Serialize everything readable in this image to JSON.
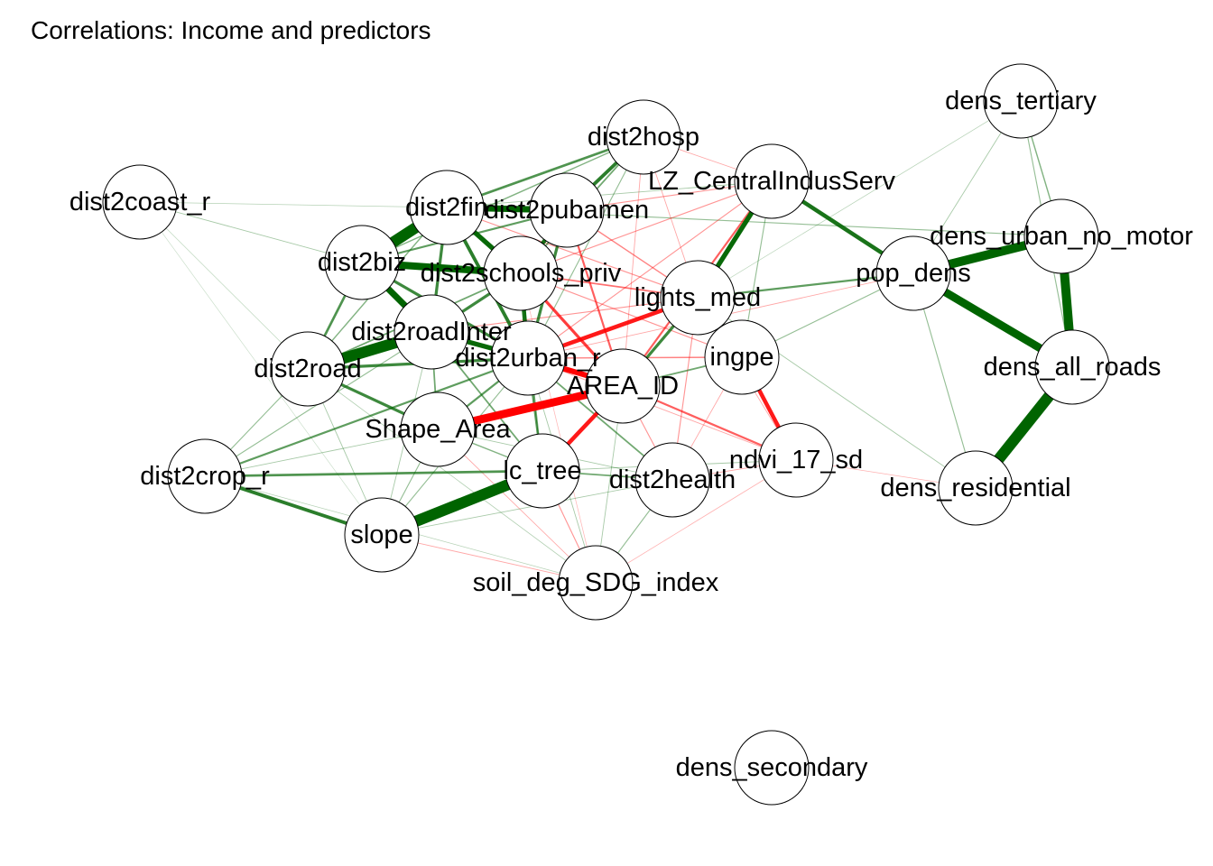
{
  "title": "Correlations: Income and predictors",
  "colors": {
    "positive": "#006400",
    "negative": "#ff0000",
    "node_fill": "#ffffff",
    "node_stroke": "#000000"
  },
  "nodes": [
    {
      "id": "dist2coast_r",
      "label": "dist2coast_r"
    },
    {
      "id": "dist2hosp",
      "label": "dist2hosp"
    },
    {
      "id": "LZ_CentralIndusServ",
      "label": "LZ_CentralIndusServ"
    },
    {
      "id": "dens_tertiary",
      "label": "dens_tertiary"
    },
    {
      "id": "dist2fin",
      "label": "dist2fin"
    },
    {
      "id": "dist2pubamen",
      "label": "dist2pubamen"
    },
    {
      "id": "dens_urban_no_motor",
      "label": "dens_urban_no_motor"
    },
    {
      "id": "dist2biz",
      "label": "dist2biz"
    },
    {
      "id": "dist2schools_priv",
      "label": "dist2schools_priv"
    },
    {
      "id": "pop_dens",
      "label": "pop_dens"
    },
    {
      "id": "lights_med",
      "label": "lights_med"
    },
    {
      "id": "dist2roadInter",
      "label": "dist2roadInter"
    },
    {
      "id": "dist2urban_r",
      "label": "dist2urban_r"
    },
    {
      "id": "ingpe",
      "label": "ingpe"
    },
    {
      "id": "dist2road",
      "label": "dist2road"
    },
    {
      "id": "AREA_ID",
      "label": "AREA_ID"
    },
    {
      "id": "dens_all_roads",
      "label": "dens_all_roads"
    },
    {
      "id": "Shape_Area",
      "label": "Shape_Area"
    },
    {
      "id": "ndvi_17_sd",
      "label": "ndvi_17_sd"
    },
    {
      "id": "dist2crop_r",
      "label": "dist2crop_r"
    },
    {
      "id": "lc_tree",
      "label": "lc_tree"
    },
    {
      "id": "dist2health",
      "label": "dist2health"
    },
    {
      "id": "dens_residential",
      "label": "dens_residential"
    },
    {
      "id": "slope",
      "label": "slope"
    },
    {
      "id": "soil_deg_SDG_index",
      "label": "soil_deg_SDG_index"
    },
    {
      "id": "dens_secondary",
      "label": "dens_secondary"
    }
  ],
  "edges": [
    {
      "a": "dist2fin",
      "b": "dist2biz",
      "sign": "pos",
      "strength": 0.95
    },
    {
      "a": "dist2biz",
      "b": "dist2schools_priv",
      "sign": "pos",
      "strength": 0.75
    },
    {
      "a": "dist2biz",
      "b": "dist2roadInter",
      "sign": "pos",
      "strength": 0.7
    },
    {
      "a": "dist2fin",
      "b": "dist2pubamen",
      "sign": "pos",
      "strength": 0.7
    },
    {
      "a": "dist2fin",
      "b": "dist2schools_priv",
      "sign": "pos",
      "strength": 0.6
    },
    {
      "a": "dist2fin",
      "b": "dist2urban_r",
      "sign": "pos",
      "strength": 0.5
    },
    {
      "a": "dist2road",
      "b": "dist2roadInter",
      "sign": "pos",
      "strength": 0.95
    },
    {
      "a": "dist2road",
      "b": "dist2urban_r",
      "sign": "pos",
      "strength": 0.45
    },
    {
      "a": "dist2roadInter",
      "b": "dist2urban_r",
      "sign": "pos",
      "strength": 0.6
    },
    {
      "a": "dist2schools_priv",
      "b": "dist2urban_r",
      "sign": "pos",
      "strength": 0.55
    },
    {
      "a": "dist2pubamen",
      "b": "dist2schools_priv",
      "sign": "pos",
      "strength": 0.55
    },
    {
      "a": "dist2hosp",
      "b": "dist2fin",
      "sign": "pos",
      "strength": 0.4
    },
    {
      "a": "dist2hosp",
      "b": "dist2pubamen",
      "sign": "pos",
      "strength": 0.5
    },
    {
      "a": "dist2hosp",
      "b": "dist2biz",
      "sign": "pos",
      "strength": 0.25
    },
    {
      "a": "dist2biz",
      "b": "dist2road",
      "sign": "pos",
      "strength": 0.4
    },
    {
      "a": "dist2biz",
      "b": "dist2urban_r",
      "sign": "pos",
      "strength": 0.45
    },
    {
      "a": "dist2road",
      "b": "Shape_Area",
      "sign": "pos",
      "strength": 0.45
    },
    {
      "a": "dist2road",
      "b": "dist2crop_r",
      "sign": "pos",
      "strength": 0.2
    },
    {
      "a": "dist2coast_r",
      "b": "dist2biz",
      "sign": "pos",
      "strength": 0.15
    },
    {
      "a": "dist2coast_r",
      "b": "dist2fin",
      "sign": "pos",
      "strength": 0.1
    },
    {
      "a": "dist2coast_r",
      "b": "dist2road",
      "sign": "pos",
      "strength": 0.08
    },
    {
      "a": "dist2coast_r",
      "b": "slope",
      "sign": "pos",
      "strength": 0.05
    },
    {
      "a": "slope",
      "b": "lc_tree",
      "sign": "pos",
      "strength": 0.95
    },
    {
      "a": "slope",
      "b": "dist2crop_r",
      "sign": "pos",
      "strength": 0.5
    },
    {
      "a": "dist2crop_r",
      "b": "lc_tree",
      "sign": "pos",
      "strength": 0.4
    },
    {
      "a": "dist2crop_r",
      "b": "dist2urban_r",
      "sign": "pos",
      "strength": 0.35
    },
    {
      "a": "dist2crop_r",
      "b": "dist2roadInter",
      "sign": "pos",
      "strength": 0.2
    },
    {
      "a": "lc_tree",
      "b": "dist2urban_r",
      "sign": "pos",
      "strength": 0.35
    },
    {
      "a": "lc_tree",
      "b": "dist2health",
      "sign": "pos",
      "strength": 0.3
    },
    {
      "a": "lc_tree",
      "b": "Shape_Area",
      "sign": "pos",
      "strength": 0.25
    },
    {
      "a": "Shape_Area",
      "b": "AREA_ID",
      "sign": "neg",
      "strength": 0.8
    },
    {
      "a": "Shape_Area",
      "b": "dist2urban_r",
      "sign": "pos",
      "strength": 0.35
    },
    {
      "a": "Shape_Area",
      "b": "dist2roadInter",
      "sign": "pos",
      "strength": 0.3
    },
    {
      "a": "AREA_ID",
      "b": "lc_tree",
      "sign": "neg",
      "strength": 0.55
    },
    {
      "a": "AREA_ID",
      "b": "dist2urban_r",
      "sign": "neg",
      "strength": 0.65
    },
    {
      "a": "AREA_ID",
      "b": "dist2schools_priv",
      "sign": "neg",
      "strength": 0.45
    },
    {
      "a": "AREA_ID",
      "b": "dist2pubamen",
      "sign": "neg",
      "strength": 0.35
    },
    {
      "a": "AREA_ID",
      "b": "LZ_CentralIndusServ",
      "sign": "neg",
      "strength": 0.35
    },
    {
      "a": "AREA_ID",
      "b": "ndvi_17_sd",
      "sign": "neg",
      "strength": 0.35
    },
    {
      "a": "AREA_ID",
      "b": "lights_med",
      "sign": "pos",
      "strength": 0.45
    },
    {
      "a": "AREA_ID",
      "b": "ingpe",
      "sign": "pos",
      "strength": 0.3
    },
    {
      "a": "AREA_ID",
      "b": "dist2health",
      "sign": "neg",
      "strength": 0.2
    },
    {
      "a": "AREA_ID",
      "b": "dist2roadInter",
      "sign": "neg",
      "strength": 0.2
    },
    {
      "a": "ingpe",
      "b": "ndvi_17_sd",
      "sign": "neg",
      "strength": 0.55
    },
    {
      "a": "ingpe",
      "b": "lights_med",
      "sign": "pos",
      "strength": 0.4
    },
    {
      "a": "lights_med",
      "b": "dist2urban_r",
      "sign": "neg",
      "strength": 0.55
    },
    {
      "a": "lights_med",
      "b": "dist2schools_priv",
      "sign": "neg",
      "strength": 0.3
    },
    {
      "a": "lights_med",
      "b": "LZ_CentralIndusServ",
      "sign": "pos",
      "strength": 0.6
    },
    {
      "a": "lights_med",
      "b": "pop_dens",
      "sign": "pos",
      "strength": 0.35
    },
    {
      "a": "lights_med",
      "b": "dist2health",
      "sign": "neg",
      "strength": 0.2
    },
    {
      "a": "LZ_CentralIndusServ",
      "b": "pop_dens",
      "sign": "pos",
      "strength": 0.55
    },
    {
      "a": "LZ_CentralIndusServ",
      "b": "dist2pubamen",
      "sign": "neg",
      "strength": 0.2
    },
    {
      "a": "LZ_CentralIndusServ",
      "b": "dist2hosp",
      "sign": "neg",
      "strength": 0.15
    },
    {
      "a": "dist2hosp",
      "b": "AREA_ID",
      "sign": "neg",
      "strength": 0.15
    },
    {
      "a": "dist2hosp",
      "b": "lights_med",
      "sign": "neg",
      "strength": 0.15
    },
    {
      "a": "pop_dens",
      "b": "dens_urban_no_motor",
      "sign": "pos",
      "strength": 0.85
    },
    {
      "a": "pop_dens",
      "b": "dens_all_roads",
      "sign": "pos",
      "strength": 0.8
    },
    {
      "a": "pop_dens",
      "b": "dens_residential",
      "sign": "pos",
      "strength": 0.2
    },
    {
      "a": "pop_dens",
      "b": "dens_tertiary",
      "sign": "pos",
      "strength": 0.15
    },
    {
      "a": "pop_dens",
      "b": "ingpe",
      "sign": "pos",
      "strength": 0.2
    },
    {
      "a": "pop_dens",
      "b": "dist2urban_r",
      "sign": "neg",
      "strength": 0.15
    },
    {
      "a": "dens_urban_no_motor",
      "b": "dens_all_roads",
      "sign": "pos",
      "strength": 0.85
    },
    {
      "a": "dens_all_roads",
      "b": "dens_residential",
      "sign": "pos",
      "strength": 0.95
    },
    {
      "a": "dens_tertiary",
      "b": "dens_urban_no_motor",
      "sign": "pos",
      "strength": 0.25
    },
    {
      "a": "dens_tertiary",
      "b": "dens_all_roads",
      "sign": "pos",
      "strength": 0.2
    },
    {
      "a": "dens_tertiary",
      "b": "lights_med",
      "sign": "pos",
      "strength": 0.1
    },
    {
      "a": "dens_urban_no_motor",
      "b": "dist2fin",
      "sign": "pos",
      "strength": 0.2
    },
    {
      "a": "dens_residential",
      "b": "ndvi_17_sd",
      "sign": "neg",
      "strength": 0.12
    },
    {
      "a": "dens_residential",
      "b": "lights_med",
      "sign": "pos",
      "strength": 0.15
    },
    {
      "a": "dist2health",
      "b": "dist2urban_r",
      "sign": "pos",
      "strength": 0.3
    },
    {
      "a": "dist2health",
      "b": "ndvi_17_sd",
      "sign": "neg",
      "strength": 0.15
    },
    {
      "a": "dist2health",
      "b": "soil_deg_SDG_index",
      "sign": "pos",
      "strength": 0.2
    },
    {
      "a": "soil_deg_SDG_index",
      "b": "slope",
      "sign": "neg",
      "strength": 0.15
    },
    {
      "a": "soil_deg_SDG_index",
      "b": "lc_tree",
      "sign": "neg",
      "strength": 0.2
    },
    {
      "a": "soil_deg_SDG_index",
      "b": "Shape_Area",
      "sign": "neg",
      "strength": 0.15
    },
    {
      "a": "soil_deg_SDG_index",
      "b": "AREA_ID",
      "sign": "pos",
      "strength": 0.15
    },
    {
      "a": "soil_deg_SDG_index",
      "b": "ndvi_17_sd",
      "sign": "neg",
      "strength": 0.12
    },
    {
      "a": "soil_deg_SDG_index",
      "b": "dist2urban_r",
      "sign": "pos",
      "strength": 0.15
    },
    {
      "a": "soil_deg_SDG_index",
      "b": "dist2crop_r",
      "sign": "pos",
      "strength": 0.1
    },
    {
      "a": "soil_deg_SDG_index",
      "b": "dist2road",
      "sign": "pos",
      "strength": 0.12
    },
    {
      "a": "soil_deg_SDG_index",
      "b": "dist2schools_priv",
      "sign": "neg",
      "strength": 0.1
    },
    {
      "a": "ndvi_17_sd",
      "b": "dist2urban_r",
      "sign": "neg",
      "strength": 0.15
    },
    {
      "a": "ndvi_17_sd",
      "b": "lights_med",
      "sign": "neg",
      "strength": 0.15
    },
    {
      "a": "ndvi_17_sd",
      "b": "lc_tree",
      "sign": "pos",
      "strength": 0.15
    },
    {
      "a": "dist2pubamen",
      "b": "lights_med",
      "sign": "neg",
      "strength": 0.25
    },
    {
      "a": "dist2pubamen",
      "b": "dist2urban_r",
      "sign": "pos",
      "strength": 0.45
    },
    {
      "a": "dist2pubamen",
      "b": "dist2biz",
      "sign": "pos",
      "strength": 0.35
    },
    {
      "a": "dist2schools_priv",
      "b": "dist2roadInter",
      "sign": "pos",
      "strength": 0.45
    },
    {
      "a": "dist2schools_priv",
      "b": "lc_tree",
      "sign": "pos",
      "strength": 0.3
    },
    {
      "a": "dist2schools_priv",
      "b": "dist2road",
      "sign": "pos",
      "strength": 0.3
    },
    {
      "a": "dist2schools_priv",
      "b": "ingpe",
      "sign": "neg",
      "strength": 0.2
    },
    {
      "a": "dist2roadInter",
      "b": "lc_tree",
      "sign": "pos",
      "strength": 0.3
    },
    {
      "a": "dist2roadInter",
      "b": "slope",
      "sign": "pos",
      "strength": 0.15
    },
    {
      "a": "dist2roadInter",
      "b": "lights_med",
      "sign": "neg",
      "strength": 0.2
    },
    {
      "a": "dist2fin",
      "b": "dist2roadInter",
      "sign": "pos",
      "strength": 0.45
    },
    {
      "a": "dist2fin",
      "b": "dist2road",
      "sign": "pos",
      "strength": 0.25
    },
    {
      "a": "dist2fin",
      "b": "lights_med",
      "sign": "neg",
      "strength": 0.2
    },
    {
      "a": "dist2fin",
      "b": "LZ_CentralIndusServ",
      "sign": "pos",
      "strength": 0.15
    },
    {
      "a": "dist2hosp",
      "b": "dist2schools_priv",
      "sign": "pos",
      "strength": 0.3
    },
    {
      "a": "dist2hosp",
      "b": "dist2urban_r",
      "sign": "pos",
      "strength": 0.2
    },
    {
      "a": "dist2urban_r",
      "b": "ingpe",
      "sign": "neg",
      "strength": 0.25
    },
    {
      "a": "dist2urban_r",
      "b": "slope",
      "sign": "pos",
      "strength": 0.2
    },
    {
      "a": "Shape_Area",
      "b": "slope",
      "sign": "pos",
      "strength": 0.2
    },
    {
      "a": "Shape_Area",
      "b": "dist2crop_r",
      "sign": "pos",
      "strength": 0.15
    },
    {
      "a": "Shape_Area",
      "b": "dist2health",
      "sign": "pos",
      "strength": 0.15
    },
    {
      "a": "slope",
      "b": "dist2road",
      "sign": "pos",
      "strength": 0.15
    },
    {
      "a": "slope",
      "b": "dist2health",
      "sign": "pos",
      "strength": 0.15
    },
    {
      "a": "ingpe",
      "b": "LZ_CentralIndusServ",
      "sign": "pos",
      "strength": 0.2
    },
    {
      "a": "ingpe",
      "b": "dist2health",
      "sign": "neg",
      "strength": 0.15
    },
    {
      "a": "LZ_CentralIndusServ",
      "b": "dist2urban_r",
      "sign": "neg",
      "strength": 0.2
    },
    {
      "a": "LZ_CentralIndusServ",
      "b": "dist2schools_priv",
      "sign": "neg",
      "strength": 0.2
    }
  ]
}
